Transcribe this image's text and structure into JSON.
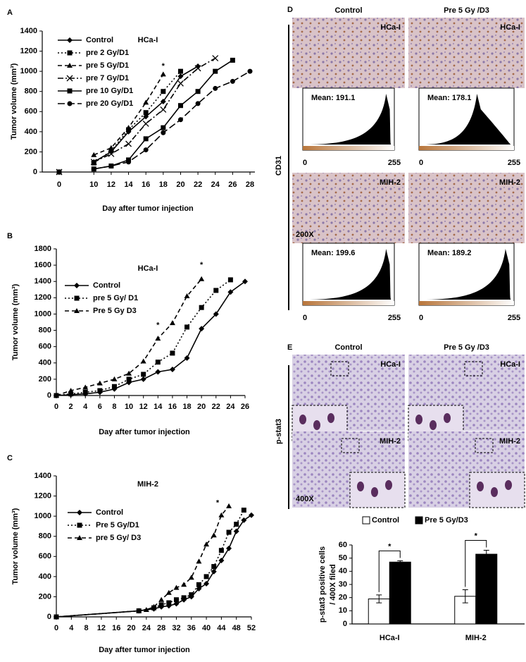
{
  "chart_data": [
    {
      "type": "line",
      "panel": "A",
      "title": "HCa-I",
      "xlabel": "Day  after tumor injection",
      "ylabel": "Tumor volume (mm³)",
      "categories": [
        "0",
        null,
        "10",
        "12",
        "14",
        "16",
        "18",
        "20",
        "22",
        "24",
        "26",
        "28"
      ],
      "ylim": [
        0,
        1400
      ],
      "yticks": [
        0,
        200,
        400,
        600,
        800,
        1000,
        1200,
        1400
      ],
      "series": [
        {
          "name": "Control",
          "color": "#000",
          "marker": "diamond",
          "dash": "solid",
          "values": [
            0,
            null,
            100,
            200,
            400,
            550,
            700,
            950,
            1050,
            null,
            null,
            null
          ]
        },
        {
          "name": "pre 2 Gy/D1",
          "color": "#000",
          "marker": "square",
          "dash": "dotted",
          "values": [
            0,
            null,
            90,
            210,
            420,
            590,
            800,
            1000,
            null,
            null,
            null,
            null
          ]
        },
        {
          "name": "pre 5 Gy/D1",
          "color": "#000",
          "marker": "triangle",
          "dash": "dashed",
          "values": [
            0,
            null,
            170,
            240,
            440,
            690,
            970,
            null,
            null,
            null,
            null,
            null
          ]
        },
        {
          "name": "pre 7 Gy/D1",
          "color": "#000",
          "marker": "x",
          "dash": "dashdot",
          "values": [
            0,
            null,
            100,
            180,
            280,
            480,
            620,
            880,
            1030,
            1130,
            null,
            null
          ]
        },
        {
          "name": "pre 10 Gy/D1",
          "color": "#000",
          "marker": "square",
          "dash": "solid",
          "values": [
            0,
            null,
            30,
            60,
            120,
            330,
            440,
            660,
            800,
            1000,
            1110,
            null
          ]
        },
        {
          "name": "pre 20 Gy/D1",
          "color": "#000",
          "marker": "circle",
          "dash": "longdash",
          "values": [
            0,
            null,
            30,
            60,
            100,
            220,
            390,
            520,
            680,
            830,
            900,
            1000
          ]
        }
      ],
      "annotations": [
        {
          "text": "*",
          "x": "18",
          "y": 1050
        }
      ]
    },
    {
      "type": "line",
      "panel": "B",
      "title": "HCa-I",
      "xlabel": "Day after tumor injection",
      "ylabel": "Tumor volume (mm³)",
      "x": [
        0,
        2,
        4,
        6,
        8,
        10,
        12,
        14,
        16,
        18,
        20,
        22,
        24,
        26
      ],
      "xlim": [
        0,
        26
      ],
      "xticks": [
        0,
        2,
        4,
        6,
        8,
        10,
        12,
        14,
        16,
        18,
        20,
        22,
        24,
        26
      ],
      "ylim": [
        0,
        1800
      ],
      "yticks": [
        0,
        200,
        400,
        600,
        800,
        1000,
        1200,
        1400,
        1600,
        1800
      ],
      "series": [
        {
          "name": "Control",
          "color": "#000",
          "marker": "diamond",
          "dash": "solid",
          "values": [
            0,
            10,
            20,
            40,
            80,
            160,
            200,
            290,
            320,
            460,
            820,
            1000,
            1270,
            1400
          ]
        },
        {
          "name": "pre 5 Gy/ D1",
          "color": "#000",
          "marker": "square",
          "dash": "dotted",
          "values": [
            0,
            20,
            40,
            60,
            110,
            200,
            260,
            410,
            520,
            840,
            1080,
            1290,
            1420,
            null
          ]
        },
        {
          "name": "Pre 5 Gy D3",
          "color": "#000",
          "marker": "triangle",
          "dash": "dashed",
          "values": [
            0,
            60,
            100,
            150,
            200,
            270,
            420,
            700,
            890,
            1220,
            1430,
            null,
            null,
            null
          ]
        }
      ],
      "annotations": [
        {
          "text": "*",
          "x": 14,
          "y": 860
        },
        {
          "text": "*",
          "x": 20,
          "y": 1600
        }
      ]
    },
    {
      "type": "line",
      "panel": "C",
      "title": "MIH-2",
      "xlabel": "Day after tumor injection",
      "ylabel": "Tumor volume (mm³)",
      "xlim": [
        0,
        52
      ],
      "xticks": [
        0,
        4,
        8,
        12,
        16,
        20,
        24,
        28,
        32,
        36,
        40,
        44,
        48,
        52
      ],
      "ylim": [
        0,
        1400
      ],
      "yticks": [
        0,
        200,
        400,
        600,
        800,
        1000,
        1200,
        1400
      ],
      "series": [
        {
          "name": "Control",
          "color": "#000",
          "marker": "diamond",
          "dash": "solid",
          "x": [
            0,
            22,
            26,
            28,
            30,
            32,
            34,
            36,
            38,
            40,
            42,
            44,
            46,
            48,
            50,
            52
          ],
          "values": [
            0,
            60,
            80,
            100,
            110,
            130,
            170,
            200,
            280,
            330,
            450,
            560,
            680,
            850,
            960,
            1010
          ]
        },
        {
          "name": "Pre 5 Gy/D1",
          "color": "#000",
          "marker": "square",
          "dash": "dotted",
          "x": [
            0,
            22,
            26,
            28,
            30,
            32,
            34,
            36,
            38,
            40,
            42,
            44,
            46,
            48,
            50
          ],
          "values": [
            0,
            60,
            90,
            120,
            140,
            170,
            190,
            220,
            320,
            400,
            500,
            660,
            840,
            920,
            1060
          ]
        },
        {
          "name": "pre 5 Gy/ D3",
          "color": "#000",
          "marker": "triangle",
          "dash": "dashed",
          "x": [
            0,
            22,
            24,
            26,
            28,
            30,
            32,
            34,
            36,
            38,
            40,
            42,
            44,
            46
          ],
          "values": [
            0,
            60,
            70,
            100,
            170,
            240,
            290,
            320,
            390,
            550,
            720,
            810,
            1010,
            1100
          ]
        }
      ],
      "annotations": [
        {
          "text": "*",
          "x": 43,
          "y": 1130
        }
      ]
    },
    {
      "type": "bar",
      "panel": "E",
      "ylabel": [
        "p-stat3 positive cells",
        "/ 400X filed"
      ],
      "categories": [
        "HCa-I",
        "MIH-2"
      ],
      "ylim": [
        0,
        60
      ],
      "yticks": [
        0,
        10,
        20,
        30,
        40,
        50,
        60
      ],
      "series": [
        {
          "name": "Control",
          "color": "#ffffff",
          "values": [
            19,
            21
          ],
          "errors": [
            3,
            5
          ]
        },
        {
          "name": "Pre 5 Gy/D3",
          "color": "#000000",
          "values": [
            47,
            53
          ],
          "errors": [
            1,
            3
          ]
        }
      ],
      "annotations": [
        {
          "text": "*",
          "category": "HCa-I"
        },
        {
          "text": "*",
          "category": "MIH-2"
        }
      ]
    }
  ],
  "images": {
    "D": {
      "panel": "D",
      "columns": [
        "Control",
        "Pre 5 Gy /D3"
      ],
      "side_label": "CD31",
      "tiles": [
        "HCa-I",
        "HCa-I",
        "MIH-2",
        "MIH-2"
      ],
      "magnification": "200X",
      "histograms": [
        "Mean: 191.1",
        "Mean: 178.1",
        "Mean: 199.6",
        "Mean: 189.2"
      ],
      "hist_ticks": [
        "0",
        "255"
      ]
    },
    "E": {
      "panel": "E",
      "columns": [
        "Control",
        "Pre 5 Gy /D3"
      ],
      "side_label": "p-stat3",
      "tiles": [
        "HCa-I",
        "HCa-I",
        "MIH-2",
        "MIH-2"
      ],
      "magnification": "400X"
    }
  }
}
